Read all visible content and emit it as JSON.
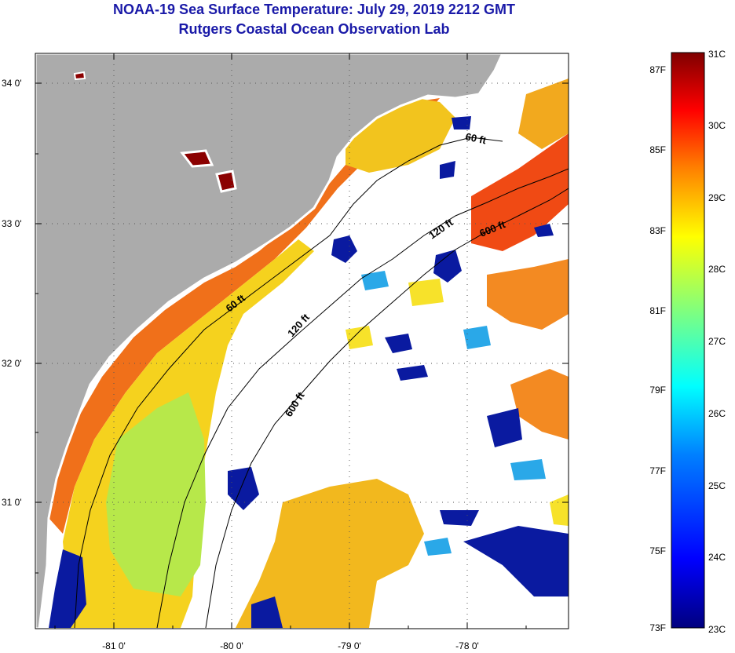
{
  "header": {
    "title": "NOAA-19 Sea Surface Temperature:  July 29, 2019 2212 GMT",
    "subtitle": "Rutgers Coastal Ocean Observation Lab"
  },
  "map": {
    "lat_ticks": [
      "34 0'",
      "33 0'",
      "32 0'",
      "31 0'"
    ],
    "lon_ticks": [
      "-81 0'",
      "-80 0'",
      "-79 0'",
      "-78 0'"
    ],
    "contours": [
      "60 ft",
      "120 ft",
      "600 ft",
      "60 ft",
      "120 ft",
      "600 ft"
    ]
  },
  "colorbar": {
    "fahrenheit": [
      "87F",
      "85F",
      "83F",
      "81F",
      "79F",
      "77F",
      "75F",
      "73F"
    ],
    "celsius": [
      "31C",
      "30C",
      "29C",
      "28C",
      "27C",
      "26C",
      "25C",
      "24C",
      "23C"
    ],
    "colors": [
      "#00007f",
      "#0000ff",
      "#007fff",
      "#00ffff",
      "#7fff7f",
      "#ffff00",
      "#ff7f00",
      "#ff0000",
      "#7f0000"
    ]
  }
}
